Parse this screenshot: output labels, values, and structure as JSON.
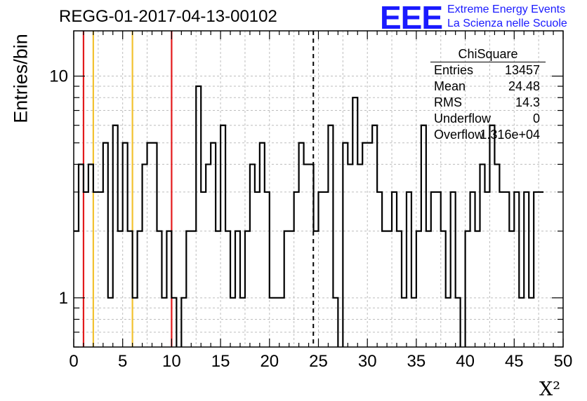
{
  "header": {
    "title": "REGG-01-2017-04-13-00102",
    "logo_mark": "EEE",
    "logo_line1": "Extreme Energy Events",
    "logo_line2": "La Scienza nelle Scuole",
    "brand_color": "#1a1aff"
  },
  "stats_box": {
    "title": "ChiSquare",
    "rows": [
      {
        "key": "Entries",
        "value": "13457"
      },
      {
        "key": "Mean",
        "value": "24.48"
      },
      {
        "key": "RMS",
        "value": "14.3"
      },
      {
        "key": "Underflow",
        "value": "0"
      },
      {
        "key": "Overflow",
        "value": "1.316e+04"
      }
    ]
  },
  "chart_data": {
    "type": "histogram",
    "title": "REGG-01-2017-04-13-00102",
    "xlabel": "X²",
    "ylabel": "Entries/bin",
    "xlim": [
      0,
      50
    ],
    "ylim": [
      0.6,
      16
    ],
    "y_scale": "log",
    "grid": true,
    "bin_width": 0.5,
    "x_ticks": [
      "0",
      "5",
      "10",
      "15",
      "20",
      "25",
      "30",
      "35",
      "40",
      "45",
      "50"
    ],
    "y_ticks": [
      "1",
      "10"
    ],
    "counts": [
      2,
      4,
      3,
      4,
      3,
      3,
      5,
      1,
      6,
      2,
      5,
      2,
      1,
      2,
      4,
      5,
      5,
      2,
      1,
      2,
      1,
      0,
      1,
      2,
      2,
      9,
      3,
      4,
      5,
      2,
      6,
      2,
      1,
      2,
      1,
      2,
      4,
      3,
      5,
      3,
      1,
      1,
      1,
      2,
      2,
      3,
      5,
      4,
      4,
      2,
      3,
      3,
      6,
      1,
      0,
      5,
      4,
      8,
      4,
      5,
      5,
      6,
      3,
      2,
      2,
      3,
      2,
      1,
      3,
      1,
      2,
      6,
      2,
      3,
      3,
      2,
      1,
      3,
      1,
      0,
      2,
      3,
      2,
      4,
      3,
      6,
      4,
      3,
      3,
      2,
      3,
      1,
      3,
      1,
      3,
      3
    ],
    "vertical_lines": [
      {
        "x": 1,
        "color": "#e31a1c",
        "style": "solid"
      },
      {
        "x": 2,
        "color": "#f2c230",
        "style": "solid"
      },
      {
        "x": 6,
        "color": "#f2c230",
        "style": "solid"
      },
      {
        "x": 10,
        "color": "#e31a1c",
        "style": "solid"
      },
      {
        "x": 24.48,
        "color": "#000000",
        "style": "dashed"
      }
    ]
  }
}
